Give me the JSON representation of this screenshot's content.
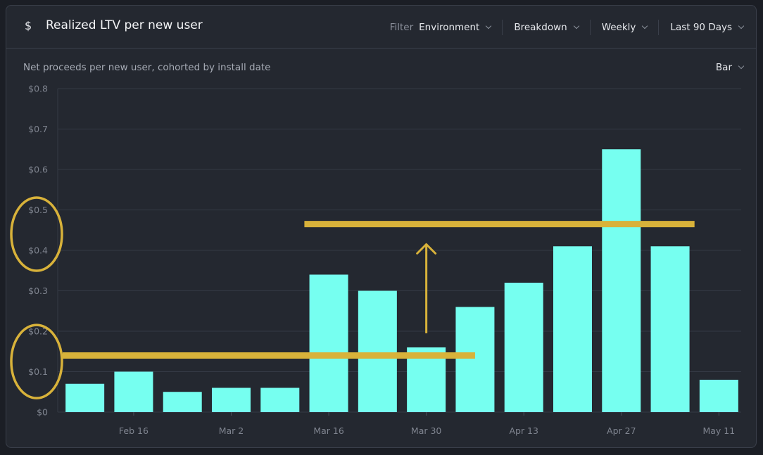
{
  "header": {
    "title": "Realized LTV per new user",
    "icon": "dollar-icon",
    "filter_label": "Filter",
    "filter_value": "Environment",
    "breakdown_label": "Breakdown",
    "interval_label": "Weekly",
    "range_label": "Last 90 Days"
  },
  "subtitle": "Net proceeds per new user, cohorted by install date",
  "chart_type_label": "Bar",
  "colors": {
    "bar": "#76fff0",
    "annotation": "#d8b23a",
    "background": "#242830"
  },
  "chart_data": {
    "type": "bar",
    "title": "Realized LTV per new user",
    "subtitle": "Net proceeds per new user, cohorted by install date",
    "values": [
      0.07,
      0.1,
      0.05,
      0.06,
      0.06,
      0.34,
      0.3,
      0.16,
      0.26,
      0.32,
      0.41,
      0.65,
      0.41,
      0.08
    ],
    "x_tick_labels": [
      {
        "bar_index": 1,
        "label": "Feb 16"
      },
      {
        "bar_index": 3,
        "label": "Mar 2"
      },
      {
        "bar_index": 5,
        "label": "Mar 16"
      },
      {
        "bar_index": 7,
        "label": "Mar 30"
      },
      {
        "bar_index": 9,
        "label": "Apr 13"
      },
      {
        "bar_index": 11,
        "label": "Apr 27"
      },
      {
        "bar_index": 13,
        "label": "May 11"
      }
    ],
    "y_ticks": [
      "$0",
      "$0.1",
      "$0.2",
      "$0.3",
      "$0.4",
      "$0.5",
      "$0.6",
      "$0.7",
      "$0.8"
    ],
    "ylim": [
      0,
      0.8
    ],
    "grid": true,
    "legend": "none",
    "annotations": [
      {
        "type": "hline",
        "y": 0.14,
        "from_bar": 0,
        "to_bar": 8
      },
      {
        "type": "hline",
        "y": 0.465,
        "from_bar": 4.5,
        "to_bar": 12.5
      },
      {
        "type": "arrow",
        "at_bar": 7,
        "from_y": 0.195,
        "to_y": 0.415
      },
      {
        "type": "ellipse",
        "y_center": 0.44
      },
      {
        "type": "ellipse",
        "y_center": 0.125
      }
    ]
  }
}
